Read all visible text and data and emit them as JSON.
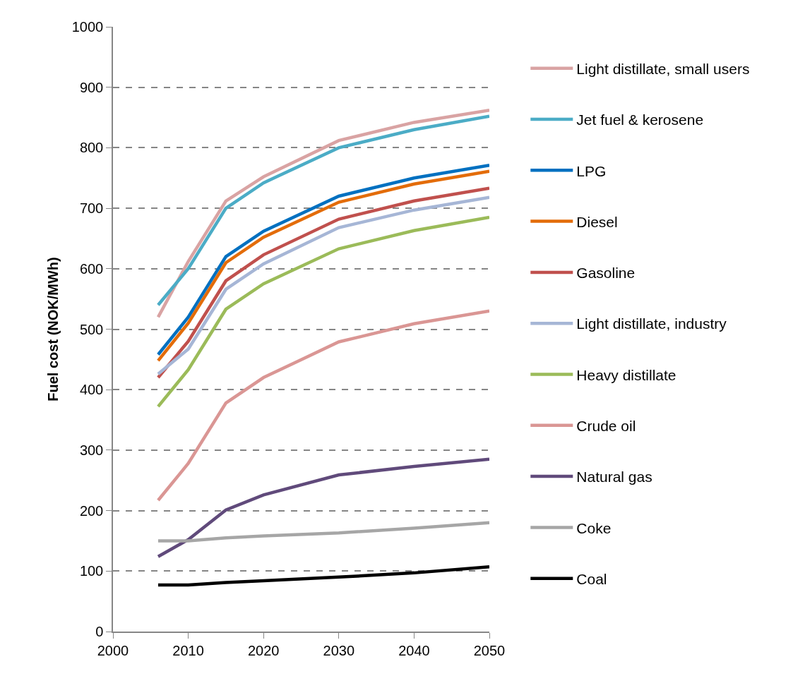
{
  "chart_data": {
    "type": "line",
    "ylabel": "Fuel cost (NOK/MWh)",
    "x": [
      2006,
      2010,
      2015,
      2020,
      2030,
      2040,
      2050
    ],
    "xlim": [
      2000,
      2050
    ],
    "xticks": [
      2000,
      2010,
      2020,
      2030,
      2040,
      2050
    ],
    "ylim": [
      0,
      1000
    ],
    "yticks": [
      0,
      100,
      200,
      300,
      400,
      500,
      600,
      700,
      800,
      900,
      1000
    ],
    "grid": "y",
    "legend": "right",
    "marker": "none",
    "line_style": "solid",
    "series": [
      {
        "name": "Light distillate, small users",
        "color": "#d9a3a3",
        "values": [
          520,
          612,
          712,
          752,
          812,
          842,
          862
        ]
      },
      {
        "name": "Jet fuel & kerosene",
        "color": "#4bacc6",
        "values": [
          540,
          600,
          700,
          742,
          800,
          830,
          852
        ]
      },
      {
        "name": "LPG",
        "color": "#0070c0",
        "values": [
          458,
          520,
          620,
          662,
          720,
          750,
          771
        ]
      },
      {
        "name": "Diesel",
        "color": "#e36c09",
        "values": [
          448,
          510,
          610,
          652,
          710,
          740,
          761
        ]
      },
      {
        "name": "Gasoline",
        "color": "#c0504d",
        "values": [
          420,
          480,
          580,
          623,
          682,
          712,
          733
        ]
      },
      {
        "name": "Light distillate, industry",
        "color": "#a6b6d6",
        "values": [
          426,
          467,
          566,
          608,
          668,
          697,
          718
        ]
      },
      {
        "name": "Heavy distillate",
        "color": "#9bbb59",
        "values": [
          372,
          433,
          533,
          575,
          633,
          663,
          685
        ]
      },
      {
        "name": "Crude oil",
        "color": "#da9694",
        "values": [
          217,
          278,
          378,
          420,
          479,
          509,
          530
        ]
      },
      {
        "name": "Natural gas",
        "color": "#604a7b",
        "values": [
          124,
          152,
          201,
          226,
          259,
          273,
          285
        ]
      },
      {
        "name": "Coke",
        "color": "#a6a6a6",
        "values": [
          150,
          150,
          155,
          158,
          163,
          171,
          180
        ]
      },
      {
        "name": "Coal",
        "color": "#000000",
        "values": [
          77,
          77,
          81,
          84,
          90,
          97,
          107
        ]
      }
    ]
  }
}
